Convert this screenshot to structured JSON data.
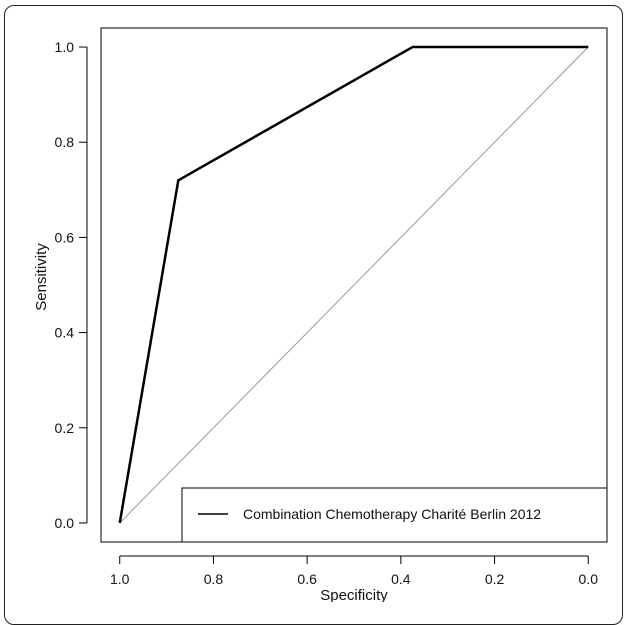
{
  "chart_data": {
    "type": "line",
    "title": "",
    "xlabel": "Specificity",
    "ylabel": "Sensitivity",
    "xlim": [
      1.04,
      -0.04
    ],
    "ylim": [
      -0.04,
      1.04
    ],
    "x_reversed": true,
    "x_ticks": [
      "1.0",
      "0.8",
      "0.6",
      "0.4",
      "0.2",
      "0.0"
    ],
    "y_ticks": [
      "0.0",
      "0.2",
      "0.4",
      "0.6",
      "0.8",
      "1.0"
    ],
    "series": [
      {
        "name": "Combination Chemotherapy Charité Berlin 2012",
        "color": "#000000",
        "x": [
          1.0,
          0.875,
          0.375,
          0.0
        ],
        "y": [
          0.0,
          0.72,
          1.0,
          1.0
        ]
      }
    ],
    "reference_line": {
      "x": [
        1.0,
        0.0
      ],
      "y": [
        0.0,
        1.0
      ],
      "color": "#9a9a9a"
    },
    "legend": {
      "position": "bottom-right",
      "entries": [
        "Combination Chemotherapy Charité Berlin 2012"
      ]
    },
    "grid": false
  }
}
